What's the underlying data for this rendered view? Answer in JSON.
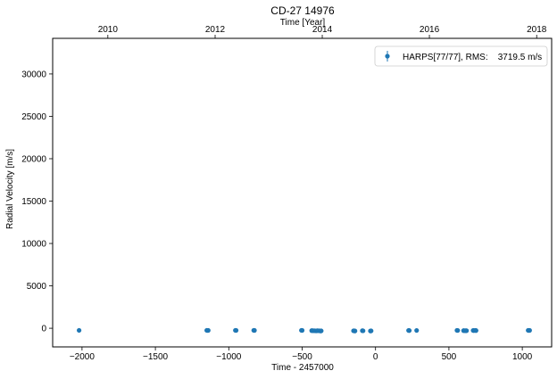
{
  "chart_data": {
    "type": "scatter",
    "title": "CD-27 14976",
    "xlabel": "Time - 2457000",
    "ylabel": "Radial Velocity [m/s]",
    "x2label": "Time [Year]",
    "xlim": [
      -2200,
      1200
    ],
    "ylim": [
      -2200,
      34200
    ],
    "x_ticks": [
      -2000,
      -1500,
      -1000,
      -500,
      0,
      500,
      1000
    ],
    "x_tick_labels": [
      "−2000",
      "−1500",
      "−1000",
      "−500",
      "0",
      "500",
      "1000"
    ],
    "y_ticks": [
      0,
      5000,
      10000,
      15000,
      20000,
      25000,
      30000
    ],
    "y_tick_labels": [
      "0",
      "5000",
      "10000",
      "15000",
      "20000",
      "25000",
      "30000"
    ],
    "top_ticks": [
      {
        "label": "2010",
        "x": -1824
      },
      {
        "label": "2012",
        "x": -1093
      },
      {
        "label": "2014",
        "x": -363
      },
      {
        "label": "2016",
        "x": 367
      },
      {
        "label": "2018",
        "x": 1098
      }
    ],
    "grid": false,
    "legend_position": "top-right",
    "series": [
      {
        "name": "HARPS[77/77], RMS:    3719.5 m/s",
        "color": "#1f77b4",
        "x": [
          -2020,
          -1150,
          -1145,
          -1140,
          -955,
          -950,
          -830,
          -825,
          -505,
          -500,
          -435,
          -425,
          -415,
          -405,
          -395,
          -385,
          -375,
          -370,
          -150,
          -145,
          -140,
          -90,
          -85,
          -35,
          -30,
          225,
          230,
          280,
          555,
          560,
          600,
          610,
          615,
          620,
          665,
          670,
          680,
          685,
          1040,
          1045,
          1050
        ],
        "y": [
          -250,
          -250,
          -260,
          -255,
          -250,
          -255,
          -250,
          -255,
          -250,
          -255,
          -280,
          -290,
          -300,
          -310,
          -290,
          -300,
          -320,
          -310,
          -300,
          -310,
          -320,
          -290,
          -300,
          -320,
          -310,
          -260,
          -270,
          -260,
          -250,
          -260,
          -280,
          -290,
          -300,
          -290,
          -260,
          -270,
          -260,
          -270,
          -250,
          -260,
          -255
        ]
      }
    ]
  }
}
